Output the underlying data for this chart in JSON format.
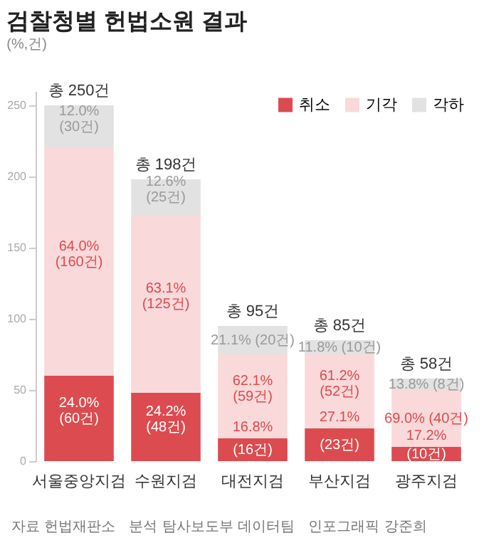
{
  "chart_data": {
    "type": "bar",
    "title": "검찰청별 헌법소원 결과",
    "subtitle": "(%,건)",
    "categories": [
      "서울중앙지검",
      "수원지검",
      "대전지검",
      "부산지검",
      "광주지검"
    ],
    "stacked": true,
    "ylim": [
      0,
      260
    ],
    "yticks": [
      0,
      50,
      100,
      150,
      200,
      250
    ],
    "legend": "top right",
    "series": [
      {
        "name": "취소",
        "color": "#dc4b4f",
        "values": [
          60,
          48,
          16,
          23,
          10
        ],
        "value_labels": [
          "24.0%\n(60건)",
          "24.2%\n(48건)",
          "16.8%\n(16건)",
          "27.1%\n(23건)",
          "17.2%\n(10건)"
        ]
      },
      {
        "name": "기각",
        "color": "#f9d9da",
        "values": [
          160,
          125,
          59,
          52,
          40
        ],
        "value_labels": [
          "64.0%\n(160건)",
          "63.1%\n(125건)",
          "62.1%\n(59건)",
          "61.2%\n(52건)",
          "69.0% (40건)"
        ]
      },
      {
        "name": "각하",
        "color": "#e2e2e2",
        "values": [
          30,
          25,
          20,
          10,
          8
        ],
        "value_labels": [
          "12.0%\n(30건)",
          "12.6%\n(25건)",
          "21.1% (20건)",
          "11.8% (10건)",
          "13.8% (8건)"
        ]
      }
    ],
    "totals": [
      "총 250건",
      "총 198건",
      "총 95건",
      "총 85건",
      "총 58건"
    ],
    "annotations": [
      "자료 헌법재판소   분석 탐사보도부 데이터팀   인포그래픽 강준희"
    ]
  }
}
